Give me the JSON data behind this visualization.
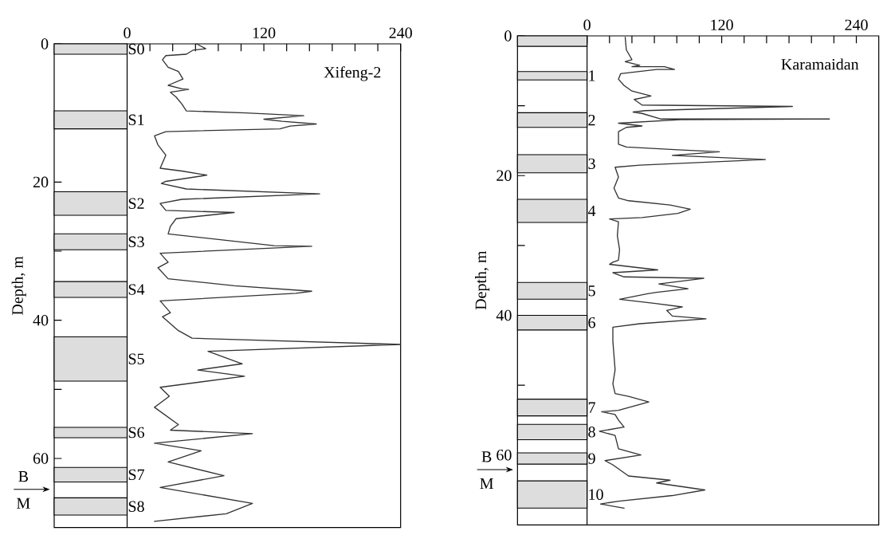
{
  "chart_data": [
    {
      "type": "line",
      "title": "Xifeng-2",
      "ylabel": "Depth, m",
      "xlim": [
        -64,
        240
      ],
      "ylim": [
        70,
        0
      ],
      "xticks": [
        0,
        {
          "value": 20,
          "label": null
        },
        {
          "value": 40,
          "label": null
        },
        {
          "value": 60,
          "label": null
        },
        {
          "value": 80,
          "label": null
        },
        {
          "value": 100,
          "label": null
        },
        120,
        {
          "value": 140,
          "label": null
        },
        {
          "value": 160,
          "label": null
        },
        {
          "value": 180,
          "label": null
        },
        {
          "value": 200,
          "label": null
        },
        {
          "value": 220,
          "label": null
        },
        240
      ],
      "yticks": [
        0,
        {
          "value": 10,
          "label": null
        },
        20,
        {
          "value": 30,
          "label": null
        },
        40,
        {
          "value": 50,
          "label": null
        },
        60
      ],
      "series": [
        {
          "color": "#333333",
          "x": [
            61,
            69,
            58,
            52,
            34,
            31,
            36,
            45,
            49,
            36,
            48,
            54,
            38,
            43,
            48,
            52,
            104,
            155,
            120,
            136,
            166,
            143,
            134,
            34,
            24,
            27,
            34,
            29,
            48,
            70,
            34,
            30,
            52,
            169,
            48,
            29,
            34,
            94,
            43,
            38,
            36,
            85,
            129,
            162,
            29,
            36,
            27,
            36,
            94,
            162,
            148,
            29,
            38,
            31,
            45,
            57,
            240,
            71,
            101,
            62,
            103,
            29,
            37,
            24,
            45,
            38,
            110,
            24,
            65,
            36,
            85,
            29,
            110,
            87,
            24
          ],
          "values": [
            0,
            0.7,
            0.9,
            1.5,
            1.7,
            2.3,
            3.4,
            4,
            5.1,
            6,
            6.5,
            6.6,
            7,
            7.7,
            8.7,
            9.7,
            10,
            10.4,
            10.9,
            11.2,
            11.6,
            11.9,
            12.3,
            12.7,
            13.3,
            14.6,
            16.1,
            18,
            18.4,
            19,
            19.9,
            20.2,
            21,
            21.7,
            22.5,
            23.1,
            24.1,
            24.4,
            25.3,
            26.4,
            27.5,
            28.4,
            29.2,
            29.3,
            30.3,
            31.6,
            32.4,
            34,
            35,
            35.8,
            36.1,
            37.2,
            38.9,
            39.5,
            41.5,
            42.6,
            43.5,
            44.5,
            46.3,
            47.2,
            48.1,
            49.7,
            51,
            52.6,
            55.1,
            55.9,
            56.4,
            57.8,
            58.9,
            60.5,
            62.5,
            64.2,
            66.5,
            68,
            69.1
          ]
        }
      ],
      "bands": [
        {
          "axis": "y",
          "from": 0,
          "to": 1.5,
          "label": "S0",
          "color": "#dddddd"
        },
        {
          "axis": "y",
          "from": 9.7,
          "to": 12.3,
          "label": "S1",
          "color": "#dddddd"
        },
        {
          "axis": "y",
          "from": 21.4,
          "to": 24.8,
          "label": "S2",
          "color": "#dddddd"
        },
        {
          "axis": "y",
          "from": 27.5,
          "to": 29.8,
          "label": "S3",
          "color": "#dddddd"
        },
        {
          "axis": "y",
          "from": 34.4,
          "to": 36.7,
          "label": "S4",
          "color": "#dddddd"
        },
        {
          "axis": "y",
          "from": 42.4,
          "to": 48.8,
          "label": "S5",
          "color": "#dddddd"
        },
        {
          "axis": "y",
          "from": 55.5,
          "to": 57,
          "label": "S6",
          "color": "#dddddd"
        },
        {
          "axis": "y",
          "from": 61.3,
          "to": 63.4,
          "label": "S7",
          "color": "#dddddd"
        },
        {
          "axis": "y",
          "from": 65.7,
          "to": 68.2,
          "label": "S8",
          "color": "#dddddd"
        }
      ],
      "annotations": [
        "B",
        "M"
      ]
    },
    {
      "type": "line",
      "title": "Karamaidan",
      "ylabel": "Depth, m",
      "xlim": [
        -62,
        260
      ],
      "ylim": [
        70,
        0
      ],
      "xticks": [
        0,
        {
          "value": 20,
          "label": null
        },
        {
          "value": 40,
          "label": null
        },
        {
          "value": 60,
          "label": null
        },
        {
          "value": 80,
          "label": null
        },
        {
          "value": 100,
          "label": null
        },
        120,
        {
          "value": 140,
          "label": null
        },
        {
          "value": 160,
          "label": null
        },
        {
          "value": 180,
          "label": null
        },
        {
          "value": 200,
          "label": null
        },
        {
          "value": 220,
          "label": null
        },
        240
      ],
      "yticks": [
        0,
        {
          "value": 10,
          "label": null
        },
        20,
        {
          "value": 30,
          "label": null
        },
        40,
        {
          "value": 50,
          "label": null
        },
        60
      ],
      "series": [
        {
          "color": "#333333",
          "x": [
            34,
            35,
            40,
            34,
            47,
            40,
            69,
            78,
            62,
            30,
            28,
            33,
            40,
            57,
            42,
            49,
            183,
            52,
            41,
            49,
            66,
            216,
            83,
            28,
            49,
            35,
            28,
            28,
            35,
            81,
            118,
            76,
            159,
            47,
            25,
            28,
            24,
            28,
            37,
            74,
            92,
            81,
            49,
            20,
            28,
            27,
            29,
            28,
            23,
            20,
            63,
            23,
            33,
            104,
            64,
            90,
            62,
            54,
            29,
            61,
            85,
            71,
            76,
            106,
            47,
            23,
            23,
            25,
            23,
            25,
            37,
            55,
            28,
            13,
            25,
            28,
            33,
            11,
            25,
            28,
            48,
            16,
            23,
            37,
            74,
            62,
            105,
            76,
            28,
            12,
            33
          ],
          "values": [
            0.2,
            2,
            3.4,
            3.7,
            4.2,
            4.4,
            4.4,
            4.8,
            4.8,
            5.4,
            6.2,
            7.1,
            7.9,
            8.6,
            9.1,
            9.9,
            10.1,
            10.7,
            10.9,
            11.1,
            11.9,
            11.9,
            12,
            12.5,
            12.9,
            13.1,
            13.7,
            15.5,
            15.9,
            16.3,
            16.6,
            17.1,
            17.7,
            18.5,
            18.8,
            20.2,
            21.8,
            23.2,
            23.6,
            24.2,
            24.8,
            25.4,
            26,
            26.2,
            26.6,
            28.6,
            30.6,
            32.1,
            32.4,
            32.7,
            33.5,
            33.9,
            34.5,
            34.7,
            35.5,
            36.2,
            36.7,
            36.9,
            37.7,
            38.3,
            38.8,
            39.3,
            40.1,
            40.5,
            41.2,
            41.7,
            43.7,
            47.8,
            49.8,
            51.2,
            51.6,
            52.4,
            53.6,
            53.8,
            54.2,
            55,
            56,
            56.6,
            57.2,
            59.1,
            60,
            60.8,
            61.4,
            63,
            63.6,
            64,
            65,
            65.8,
            66.6,
            67,
            67.6
          ]
        }
      ],
      "bands": [
        {
          "axis": "y",
          "from": 0,
          "to": 1.5,
          "color": "#dddddd"
        },
        {
          "axis": "y",
          "from": 5.1,
          "to": 6.3,
          "label": "1",
          "color": "#dddddd"
        },
        {
          "axis": "y",
          "from": 11,
          "to": 13.1,
          "label": "2",
          "color": "#dddddd"
        },
        {
          "axis": "y",
          "from": 17,
          "to": 19.6,
          "label": "3",
          "color": "#dddddd"
        },
        {
          "axis": "y",
          "from": 23.4,
          "to": 26.7,
          "label": "4",
          "color": "#dddddd"
        },
        {
          "axis": "y",
          "from": 35.3,
          "to": 37.7,
          "label": "5",
          "color": "#dddddd"
        },
        {
          "axis": "y",
          "from": 40,
          "to": 42.1,
          "label": "6",
          "color": "#dddddd"
        },
        {
          "axis": "y",
          "from": 52,
          "to": 54.4,
          "label": "7",
          "color": "#dddddd"
        },
        {
          "axis": "y",
          "from": 55.6,
          "to": 57.8,
          "label": "8",
          "color": "#dddddd"
        },
        {
          "axis": "y",
          "from": 59.7,
          "to": 61.3,
          "label": "9",
          "color": "#dddddd"
        },
        {
          "axis": "y",
          "from": 63.7,
          "to": 67.6,
          "label": "10",
          "color": "#dddddd"
        }
      ],
      "annotations": [
        "B",
        "M"
      ]
    }
  ]
}
